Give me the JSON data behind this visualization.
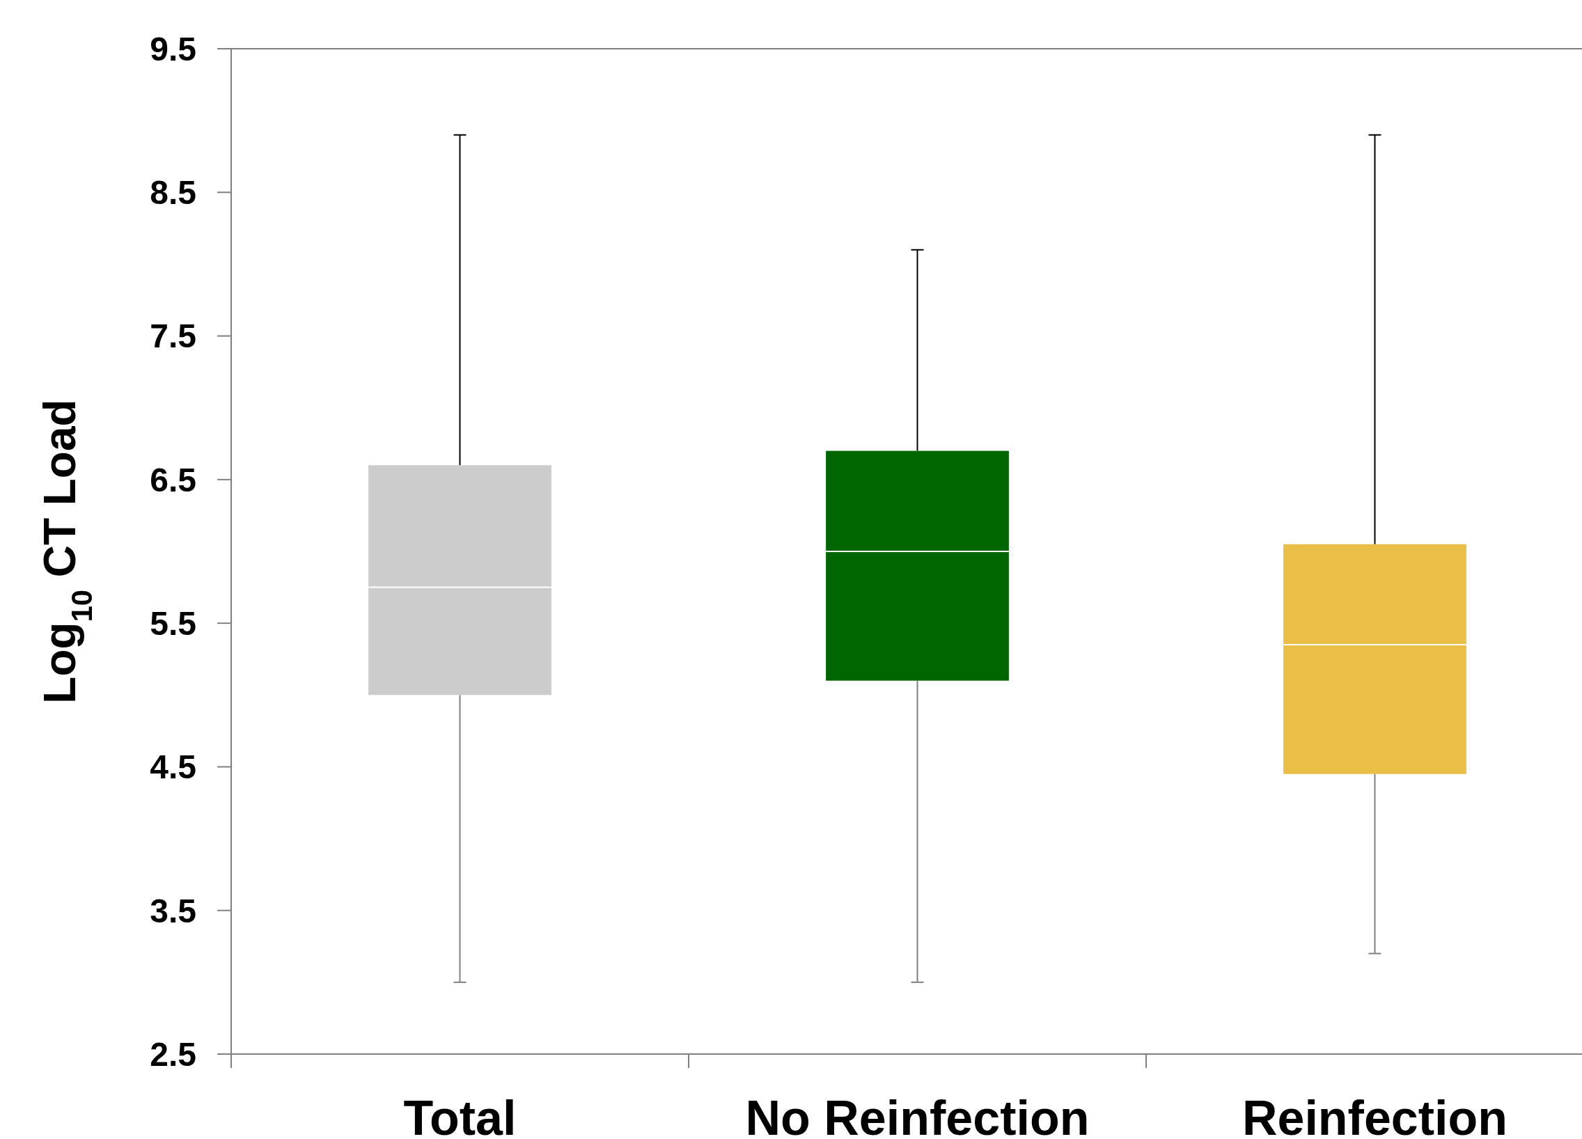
{
  "chart_data": {
    "type": "box",
    "ylabel": "Log$_{10}$ CT Load",
    "categories": [
      "Total",
      "No Reinfection",
      "Reinfection"
    ],
    "boxes": [
      {
        "low": 3.0,
        "q1": 5.0,
        "median": 5.75,
        "q3": 6.6,
        "high": 8.9
      },
      {
        "low": 3.0,
        "q1": 5.1,
        "median": 6.0,
        "q3": 6.7,
        "high": 8.1
      },
      {
        "low": 3.2,
        "q1": 4.45,
        "median": 5.35,
        "q3": 6.05,
        "high": 8.9
      }
    ],
    "colors": [
      "#cccccc",
      "#006600",
      "#e9bf46"
    ],
    "ylim": [
      2.5,
      9.5
    ],
    "yticks": [
      2.5,
      3.5,
      4.5,
      5.5,
      6.5,
      7.5,
      8.5,
      9.5
    ],
    "grid": false
  }
}
